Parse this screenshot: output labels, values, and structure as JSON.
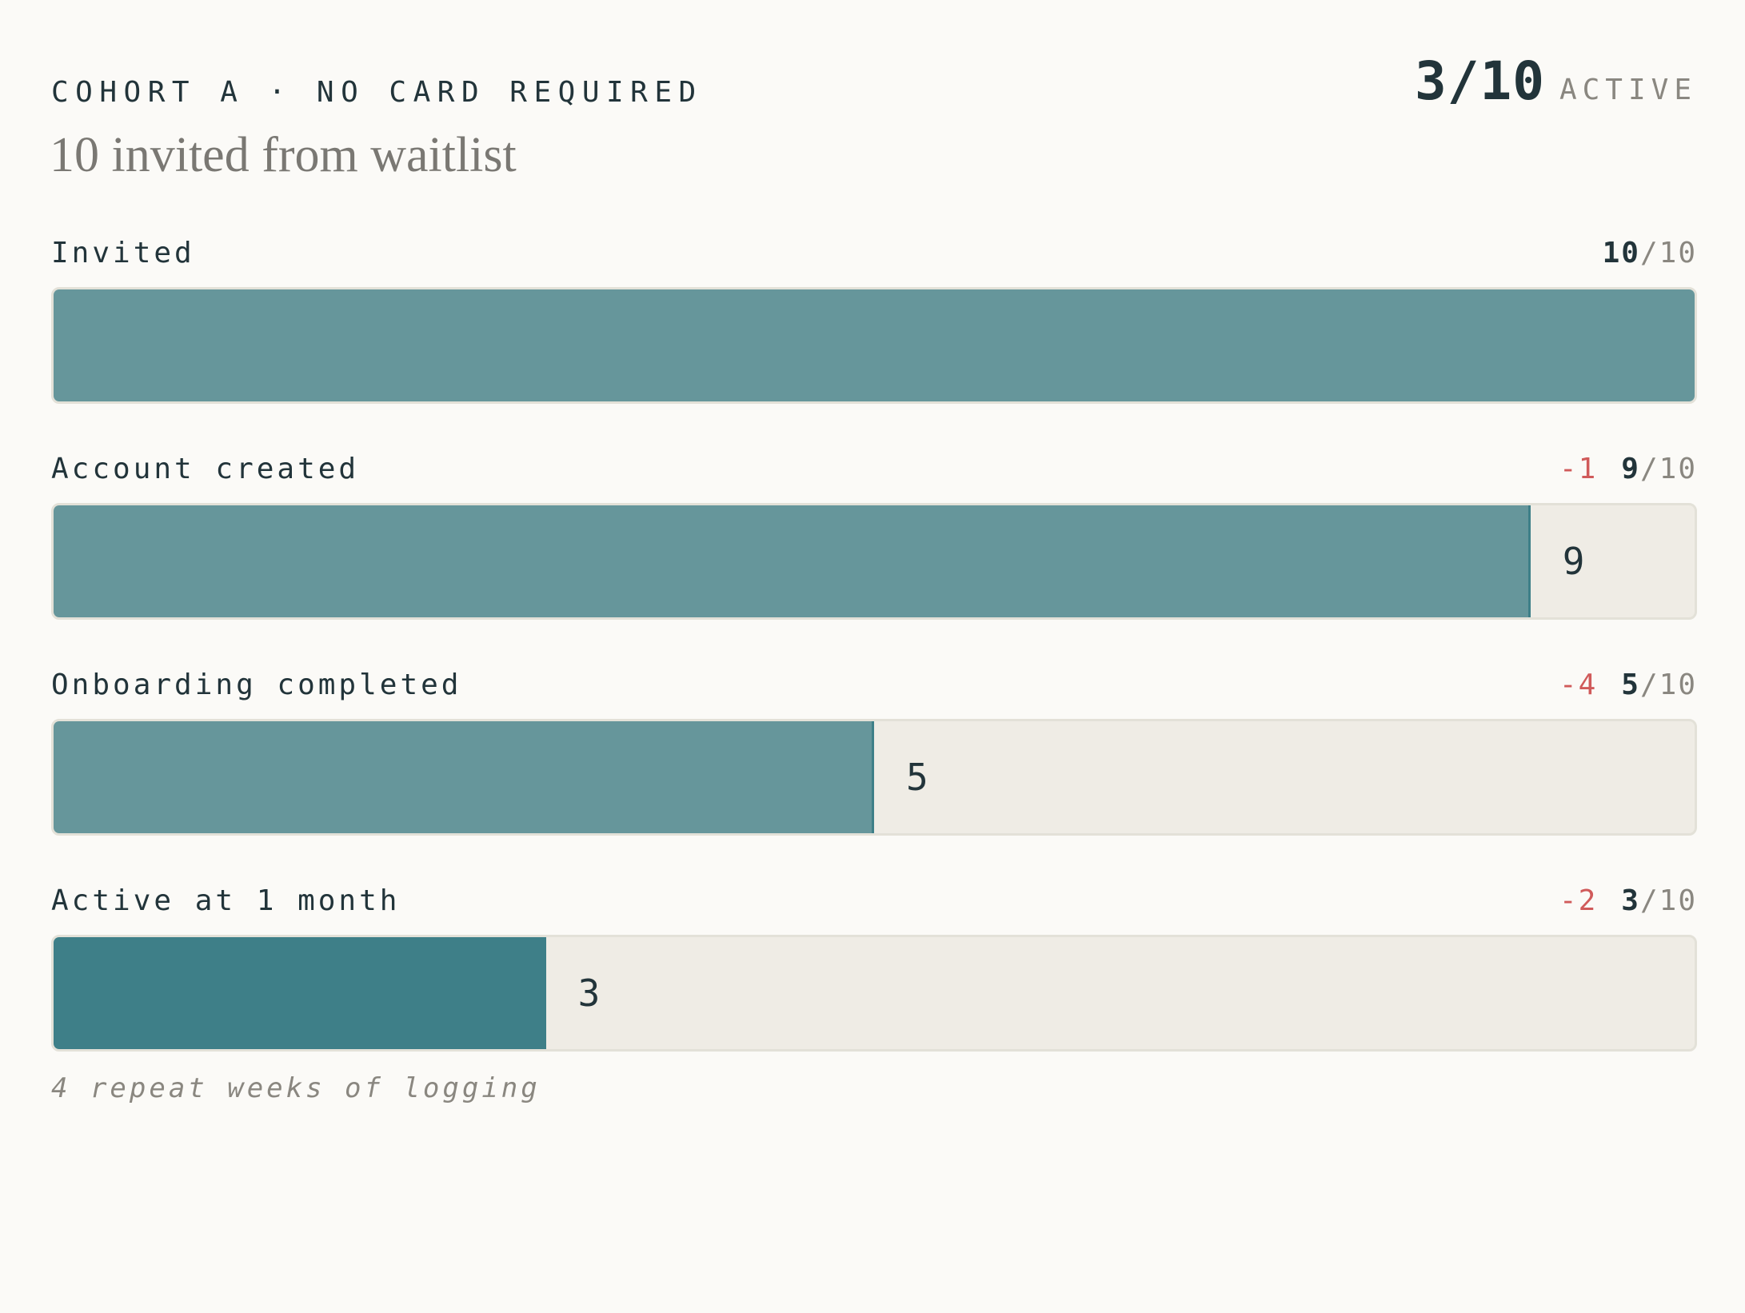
{
  "chart_data": {
    "type": "funnel",
    "title": "COHORT A · NO CARD REQUIRED",
    "subtitle": "10 invited from waitlist",
    "headline": {
      "value_label": "3/10",
      "unit": "ACTIVE"
    },
    "total": 10,
    "total_label": "/10",
    "color": "#66969b",
    "highlight_color": "#3e7f88",
    "stages": [
      {
        "name": "Invited",
        "value": 10,
        "change": null,
        "highlight": false
      },
      {
        "name": "Account created",
        "value": 9,
        "change": -1,
        "highlight": false
      },
      {
        "name": "Onboarding completed",
        "value": 5,
        "change": -4,
        "highlight": false
      },
      {
        "name": "Active at 1 month",
        "value": 3,
        "change": -2,
        "highlight": true,
        "note": "4 repeat weeks of logging"
      }
    ]
  }
}
